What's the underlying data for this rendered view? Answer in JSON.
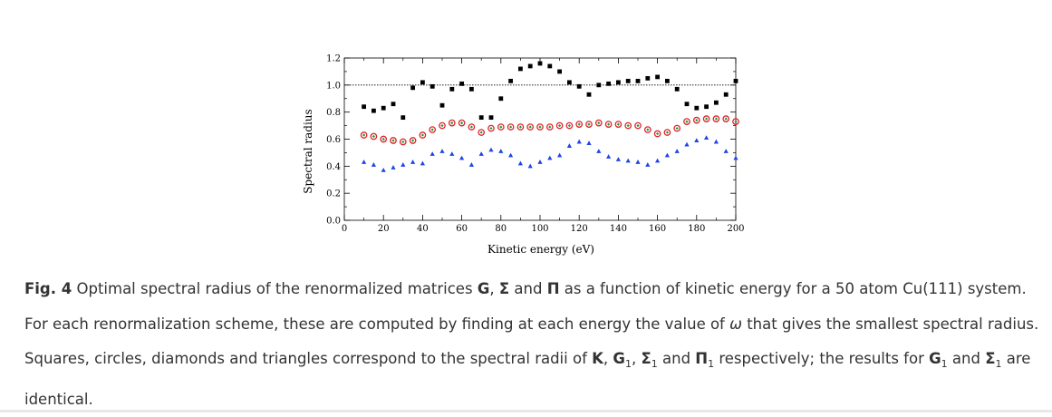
{
  "chart_data": {
    "type": "scatter",
    "xlabel": "Kinetic energy (eV)",
    "ylabel": "Spectral radius",
    "xlim": [
      0,
      200
    ],
    "ylim": [
      0.0,
      1.2
    ],
    "xticks": [
      0,
      20,
      40,
      60,
      80,
      100,
      120,
      140,
      160,
      180,
      200
    ],
    "xtick_labels": [
      "0",
      "20",
      "40",
      "60",
      "80",
      "100",
      "120",
      "140",
      "160",
      "180",
      "200"
    ],
    "yticks": [
      0.0,
      0.2,
      0.4,
      0.6,
      0.8,
      1.0,
      1.2
    ],
    "ytick_labels": [
      "0.0",
      "0.2",
      "0.4",
      "0.6",
      "0.8",
      "1.0",
      "1.2"
    ],
    "reference_line": 1.0,
    "grid": false,
    "series": [
      {
        "marker": "square",
        "color": "#000000",
        "x": [
          10,
          15,
          20,
          25,
          30,
          35,
          40,
          45,
          50,
          55,
          60,
          65,
          70,
          75,
          80,
          85,
          90,
          95,
          100,
          105,
          110,
          115,
          120,
          125,
          130,
          135,
          140,
          145,
          150,
          155,
          160,
          165,
          170,
          175,
          180,
          185,
          190,
          195,
          200
        ],
        "y": [
          0.84,
          0.81,
          0.83,
          0.86,
          0.76,
          0.98,
          1.02,
          0.99,
          0.85,
          0.97,
          1.01,
          0.97,
          0.76,
          0.76,
          0.9,
          1.03,
          1.12,
          1.14,
          1.16,
          1.14,
          1.1,
          1.02,
          0.99,
          0.93,
          1.0,
          1.01,
          1.02,
          1.03,
          1.03,
          1.05,
          1.06,
          1.03,
          0.97,
          0.86,
          0.83,
          0.84,
          0.87,
          0.93,
          1.03
        ]
      },
      {
        "marker": "circle",
        "color": "#e0202a",
        "x": [
          10,
          15,
          20,
          25,
          30,
          35,
          40,
          45,
          50,
          55,
          60,
          65,
          70,
          75,
          80,
          85,
          90,
          95,
          100,
          105,
          110,
          115,
          120,
          125,
          130,
          135,
          140,
          145,
          150,
          155,
          160,
          165,
          170,
          175,
          180,
          185,
          190,
          195,
          200
        ],
        "y": [
          0.63,
          0.62,
          0.6,
          0.59,
          0.58,
          0.59,
          0.63,
          0.67,
          0.7,
          0.72,
          0.72,
          0.69,
          0.65,
          0.68,
          0.69,
          0.69,
          0.69,
          0.69,
          0.69,
          0.69,
          0.7,
          0.7,
          0.71,
          0.71,
          0.72,
          0.71,
          0.71,
          0.7,
          0.7,
          0.67,
          0.64,
          0.65,
          0.68,
          0.73,
          0.74,
          0.75,
          0.75,
          0.75,
          0.73
        ]
      },
      {
        "marker": "diamond",
        "color": "#1b9a2e",
        "x": [
          10,
          15,
          20,
          25,
          30,
          35,
          40,
          45,
          50,
          55,
          60,
          65,
          70,
          75,
          80,
          85,
          90,
          95,
          100,
          105,
          110,
          115,
          120,
          125,
          130,
          135,
          140,
          145,
          150,
          155,
          160,
          165,
          170,
          175,
          180,
          185,
          190,
          195,
          200
        ],
        "y": [
          0.63,
          0.62,
          0.6,
          0.59,
          0.58,
          0.59,
          0.63,
          0.67,
          0.7,
          0.72,
          0.72,
          0.69,
          0.65,
          0.68,
          0.69,
          0.69,
          0.69,
          0.69,
          0.69,
          0.69,
          0.7,
          0.7,
          0.71,
          0.71,
          0.72,
          0.71,
          0.71,
          0.7,
          0.7,
          0.67,
          0.64,
          0.65,
          0.68,
          0.73,
          0.74,
          0.75,
          0.75,
          0.75,
          0.73
        ]
      },
      {
        "marker": "triangle",
        "color": "#1e44e8",
        "x": [
          10,
          15,
          20,
          25,
          30,
          35,
          40,
          45,
          50,
          55,
          60,
          65,
          70,
          75,
          80,
          85,
          90,
          95,
          100,
          105,
          110,
          115,
          120,
          125,
          130,
          135,
          140,
          145,
          150,
          155,
          160,
          165,
          170,
          175,
          180,
          185,
          190,
          195,
          200
        ],
        "y": [
          0.43,
          0.41,
          0.37,
          0.39,
          0.41,
          0.43,
          0.42,
          0.49,
          0.51,
          0.49,
          0.46,
          0.41,
          0.49,
          0.52,
          0.51,
          0.48,
          0.42,
          0.4,
          0.43,
          0.46,
          0.48,
          0.55,
          0.58,
          0.57,
          0.51,
          0.47,
          0.45,
          0.44,
          0.43,
          0.41,
          0.44,
          0.48,
          0.51,
          0.56,
          0.59,
          0.61,
          0.58,
          0.51,
          0.46
        ]
      }
    ]
  },
  "caption": {
    "fig_label": "Fig. 4",
    "text_1": " Optimal spectral radius of the renormalized matrices ",
    "G": "G",
    "sep_1": ", ",
    "Sigma": "Σ",
    "and_1": " and ",
    "Pi": "Π",
    "text_2": " as a function of kinetic energy for a 50 atom Cu(111) system. For each renormalization scheme, these are computed by finding at each energy the value of ",
    "omega": "ω",
    "text_3": " that gives the smallest spectral radius. Squares, circles, diamonds and triangles correspond to the spectral radii of ",
    "K": "K",
    "sep_2": ", ",
    "G1": "G",
    "sub_1": "1",
    "sep_3": ", ",
    "Sigma1": "Σ",
    "sub_2": "1",
    "and_2": " and ",
    "Pi1": "Π",
    "sub_3": "1",
    "text_4": " respectively; the results for ",
    "G1b": "G",
    "sub_4": "1",
    "and_3": " and ",
    "Sigma1b": "Σ",
    "sub_5": "1",
    "text_5": " are identical."
  }
}
